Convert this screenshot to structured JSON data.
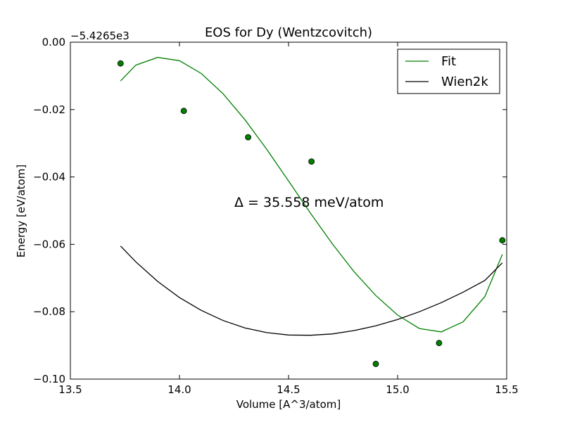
{
  "chart_data": {
    "type": "scatter",
    "title": "EOS for Dy (Wentzcovitch)",
    "xlabel": "Volume [A^3/atom]",
    "ylabel": "Energy [eV/atom]",
    "offset_label": "−5.4265e3",
    "xlim": [
      13.5,
      15.5
    ],
    "ylim": [
      -0.1,
      0.0
    ],
    "x_ticks": [
      "13.5",
      "14.0",
      "14.5",
      "15.0",
      "15.5"
    ],
    "y_ticks": [
      "0.00",
      "−0.02",
      "−0.04",
      "−0.06",
      "−0.08",
      "−0.10"
    ],
    "grid": false,
    "legend_position": "top-right",
    "annotation": "Δ = 35.558 meV/atom",
    "points": {
      "color": "#007f00",
      "x": [
        13.73,
        14.02,
        14.315,
        14.605,
        14.9,
        15.19,
        15.48
      ],
      "y": [
        -0.0063,
        -0.0204,
        -0.0282,
        -0.0354,
        -0.0955,
        -0.0893,
        -0.0588
      ]
    },
    "series": [
      {
        "name": "Fit",
        "color": "#008000",
        "x": [
          13.73,
          13.8,
          13.9,
          14.0,
          14.1,
          14.2,
          14.3,
          14.4,
          14.5,
          14.6,
          14.7,
          14.8,
          14.9,
          15.0,
          15.1,
          15.2,
          15.3,
          15.4,
          15.48
        ],
        "y": [
          -0.0115,
          -0.0068,
          -0.0045,
          -0.0055,
          -0.0093,
          -0.0153,
          -0.023,
          -0.0318,
          -0.0412,
          -0.0507,
          -0.0598,
          -0.0681,
          -0.0752,
          -0.081,
          -0.085,
          -0.086,
          -0.083,
          -0.0755,
          -0.063
        ]
      },
      {
        "name": "Wien2k",
        "color": "#000000",
        "x": [
          13.73,
          13.8,
          13.9,
          14.0,
          14.1,
          14.2,
          14.3,
          14.4,
          14.5,
          14.6,
          14.7,
          14.8,
          14.9,
          15.0,
          15.1,
          15.2,
          15.3,
          15.4,
          15.48
        ],
        "y": [
          -0.0605,
          -0.0652,
          -0.071,
          -0.0758,
          -0.0796,
          -0.0826,
          -0.0848,
          -0.0862,
          -0.0869,
          -0.087,
          -0.0866,
          -0.0856,
          -0.0842,
          -0.0823,
          -0.08,
          -0.0773,
          -0.0742,
          -0.0707,
          -0.0655
        ]
      }
    ]
  }
}
